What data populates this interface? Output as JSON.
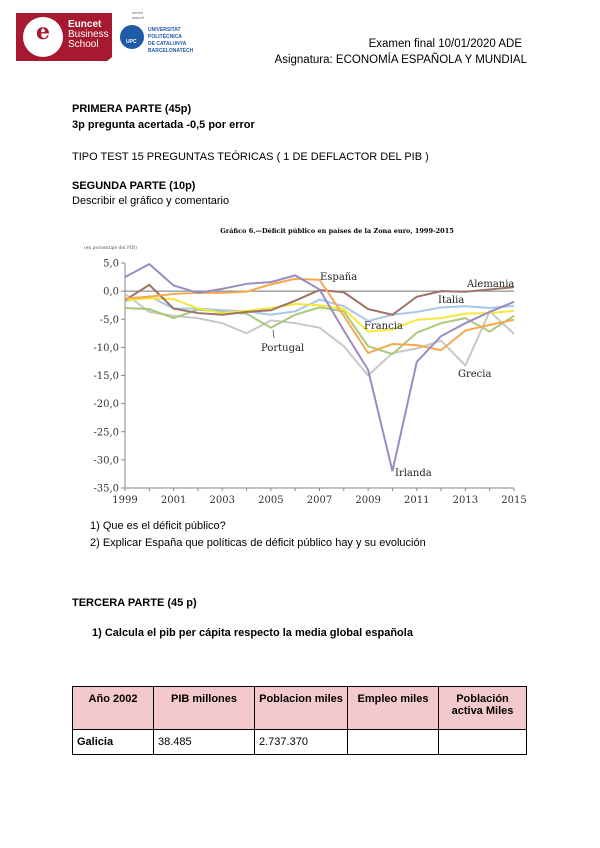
{
  "header": {
    "logo_text": [
      "Euncet",
      "Business",
      "School"
    ],
    "upc_small": "centre adscrit",
    "upc_text": [
      "UNIVERSITAT POLITÈCNICA",
      "DE CATALUNYA",
      "BARCELONATECH"
    ],
    "upc_badge": "UPC",
    "exam": "Examen final 10/01/2020 ADE",
    "subject": "Asignatura: ECONOMÍA ESPAÑOLA Y MUNDIAL"
  },
  "part1": {
    "title": "PRIMERA PARTE  (45p)",
    "scoring": "3p pregunta acertada -0,5 por error",
    "type": "TIPO TEST 15 PREGUNTAS TEÓRICAS ( 1 DE DEFLACTOR DEL PIB )"
  },
  "part2": {
    "title": "SEGUNDA PARTE (10p)",
    "instruction": "Describir el gráfico  y comentario",
    "questions": [
      "1)   Que es el déficit público?",
      "2)   Explicar España que políticas de déficit público hay y su evolución"
    ]
  },
  "chart_data": {
    "type": "line",
    "title": "Gráfico 6.—Déficit público en países de la Zona euro, 1999-2015",
    "ylabel": "(en porcentaje del PIB)",
    "x": [
      1999,
      2000,
      2001,
      2002,
      2003,
      2004,
      2005,
      2006,
      2007,
      2008,
      2009,
      2010,
      2011,
      2012,
      2013,
      2014,
      2015
    ],
    "xticks": [
      "1999",
      "2001",
      "2003",
      "2005",
      "2007",
      "2009",
      "2011",
      "2013",
      "2015"
    ],
    "yticks": [
      "5,0",
      "0,0",
      "-5,0",
      "-10,0",
      "-15,0",
      "-20,0",
      "-25,0",
      "-30,0",
      "-35,0"
    ],
    "ylim": [
      -35,
      5
    ],
    "grid": false,
    "series": [
      {
        "name": "Grecia",
        "color": "#c8c8c8",
        "values": [
          -0.5,
          -3.7,
          -4.4,
          -4.8,
          -5.7,
          -7.5,
          -5.2,
          -5.7,
          -6.5,
          -9.8,
          -15,
          -11,
          -10.2,
          -8.8,
          -13.2,
          -3.6,
          -7.6
        ]
      },
      {
        "name": "Portugal",
        "color": "#a9c97a",
        "values": [
          -3,
          -3.2,
          -4.8,
          -3.3,
          -3.7,
          -4,
          -6.5,
          -4.2,
          -2.9,
          -3.6,
          -9.8,
          -11.2,
          -7.4,
          -5.7,
          -4.8,
          -7.2,
          -4.4
        ]
      },
      {
        "name": "Italia",
        "color": "#a9c6e8",
        "values": [
          -1.8,
          -0.9,
          -3.1,
          -3.1,
          -3.4,
          -3.6,
          -4.2,
          -3.6,
          -1.5,
          -2.7,
          -5.3,
          -4.2,
          -3.7,
          -2.9,
          -2.7,
          -3,
          -2.6
        ]
      },
      {
        "name": "Francia",
        "color": "#f5e83a",
        "values": [
          -1.6,
          -1.3,
          -1.4,
          -3.1,
          -3.9,
          -3.5,
          -3,
          -2.3,
          -2.5,
          -3.2,
          -7.2,
          -6.8,
          -5.1,
          -4.8,
          -4,
          -3.9,
          -3.5
        ]
      },
      {
        "name": "Alemania",
        "color": "#9c7366",
        "values": [
          -1.6,
          1.1,
          -3.1,
          -3.9,
          -4.2,
          -3.7,
          -3.4,
          -1.7,
          0.2,
          -0.2,
          -3.2,
          -4.2,
          -1,
          0,
          -0.1,
          0.3,
          0.7
        ]
      },
      {
        "name": "España",
        "color": "#f5a94f",
        "values": [
          -1.3,
          -1,
          -0.5,
          -0.3,
          -0.3,
          -0.1,
          1.2,
          2.2,
          2,
          -4.4,
          -11,
          -9.4,
          -9.6,
          -10.5,
          -7,
          -6,
          -5.1
        ]
      },
      {
        "name": "Irlanda",
        "color": "#9b8bc4",
        "values": [
          2.5,
          4.8,
          1,
          -0.3,
          0.4,
          1.3,
          1.6,
          2.8,
          0.3,
          -7,
          -14,
          -32,
          -12.6,
          -8,
          -5.7,
          -3.7,
          -1.9
        ]
      }
    ]
  },
  "part3": {
    "title": "TERCERA PARTE (45 p)",
    "question": "1)   Calcula el pib per cápita respecto la media global española",
    "table": {
      "headers": [
        "Año 2002",
        "PIB millones",
        "Poblacion miles",
        "Empleo miles",
        "Población activa Miles"
      ],
      "rows": [
        [
          "Galicia",
          "38.485",
          "2.737.370",
          "",
          ""
        ]
      ]
    }
  }
}
